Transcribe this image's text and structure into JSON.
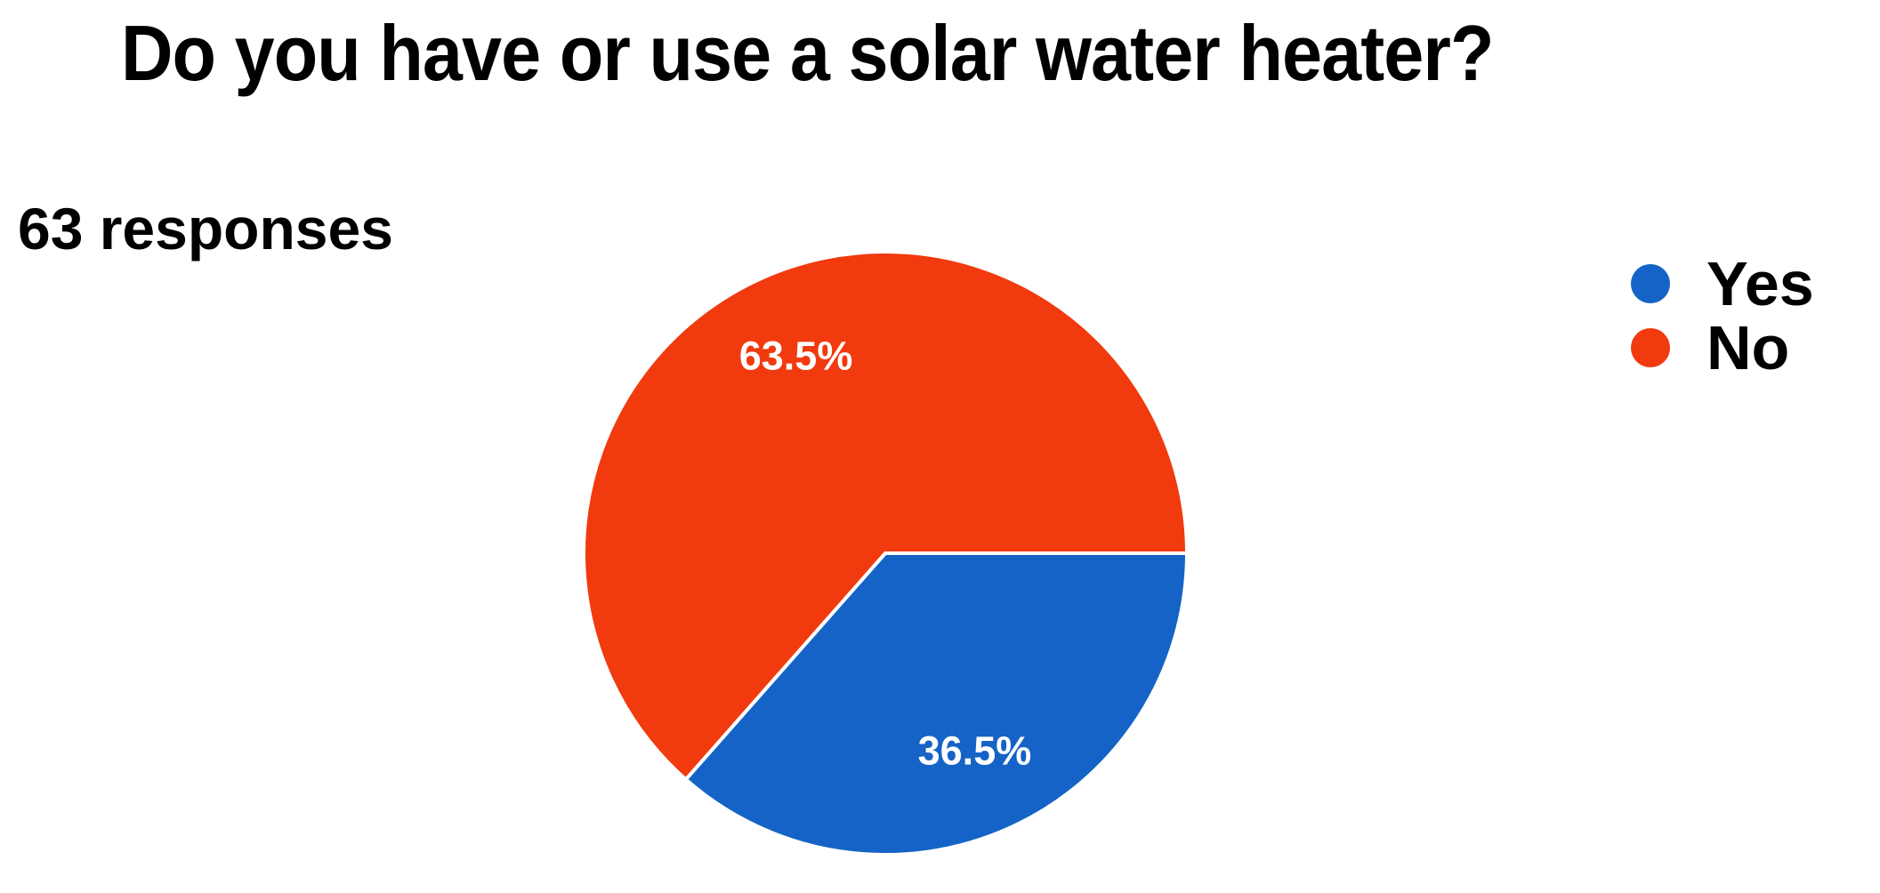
{
  "page": {
    "background_color": "#ffffff"
  },
  "chart_data": {
    "type": "pie",
    "title": "Do you have or use a solar water heater?",
    "responses_label": "63 responses",
    "responses_count": 63,
    "legend_position": "right",
    "start_angle_deg": 0,
    "direction": "clockwise",
    "slice_label_color": "#ffffff",
    "divider_color": "#ffffff",
    "slices": [
      {
        "label": "Yes",
        "value_pct": 36.5,
        "value_label": "36.5%",
        "color": "#1563C6"
      },
      {
        "label": "No",
        "value_pct": 63.5,
        "value_label": "63.5%",
        "color": "#F13A0E"
      }
    ]
  }
}
